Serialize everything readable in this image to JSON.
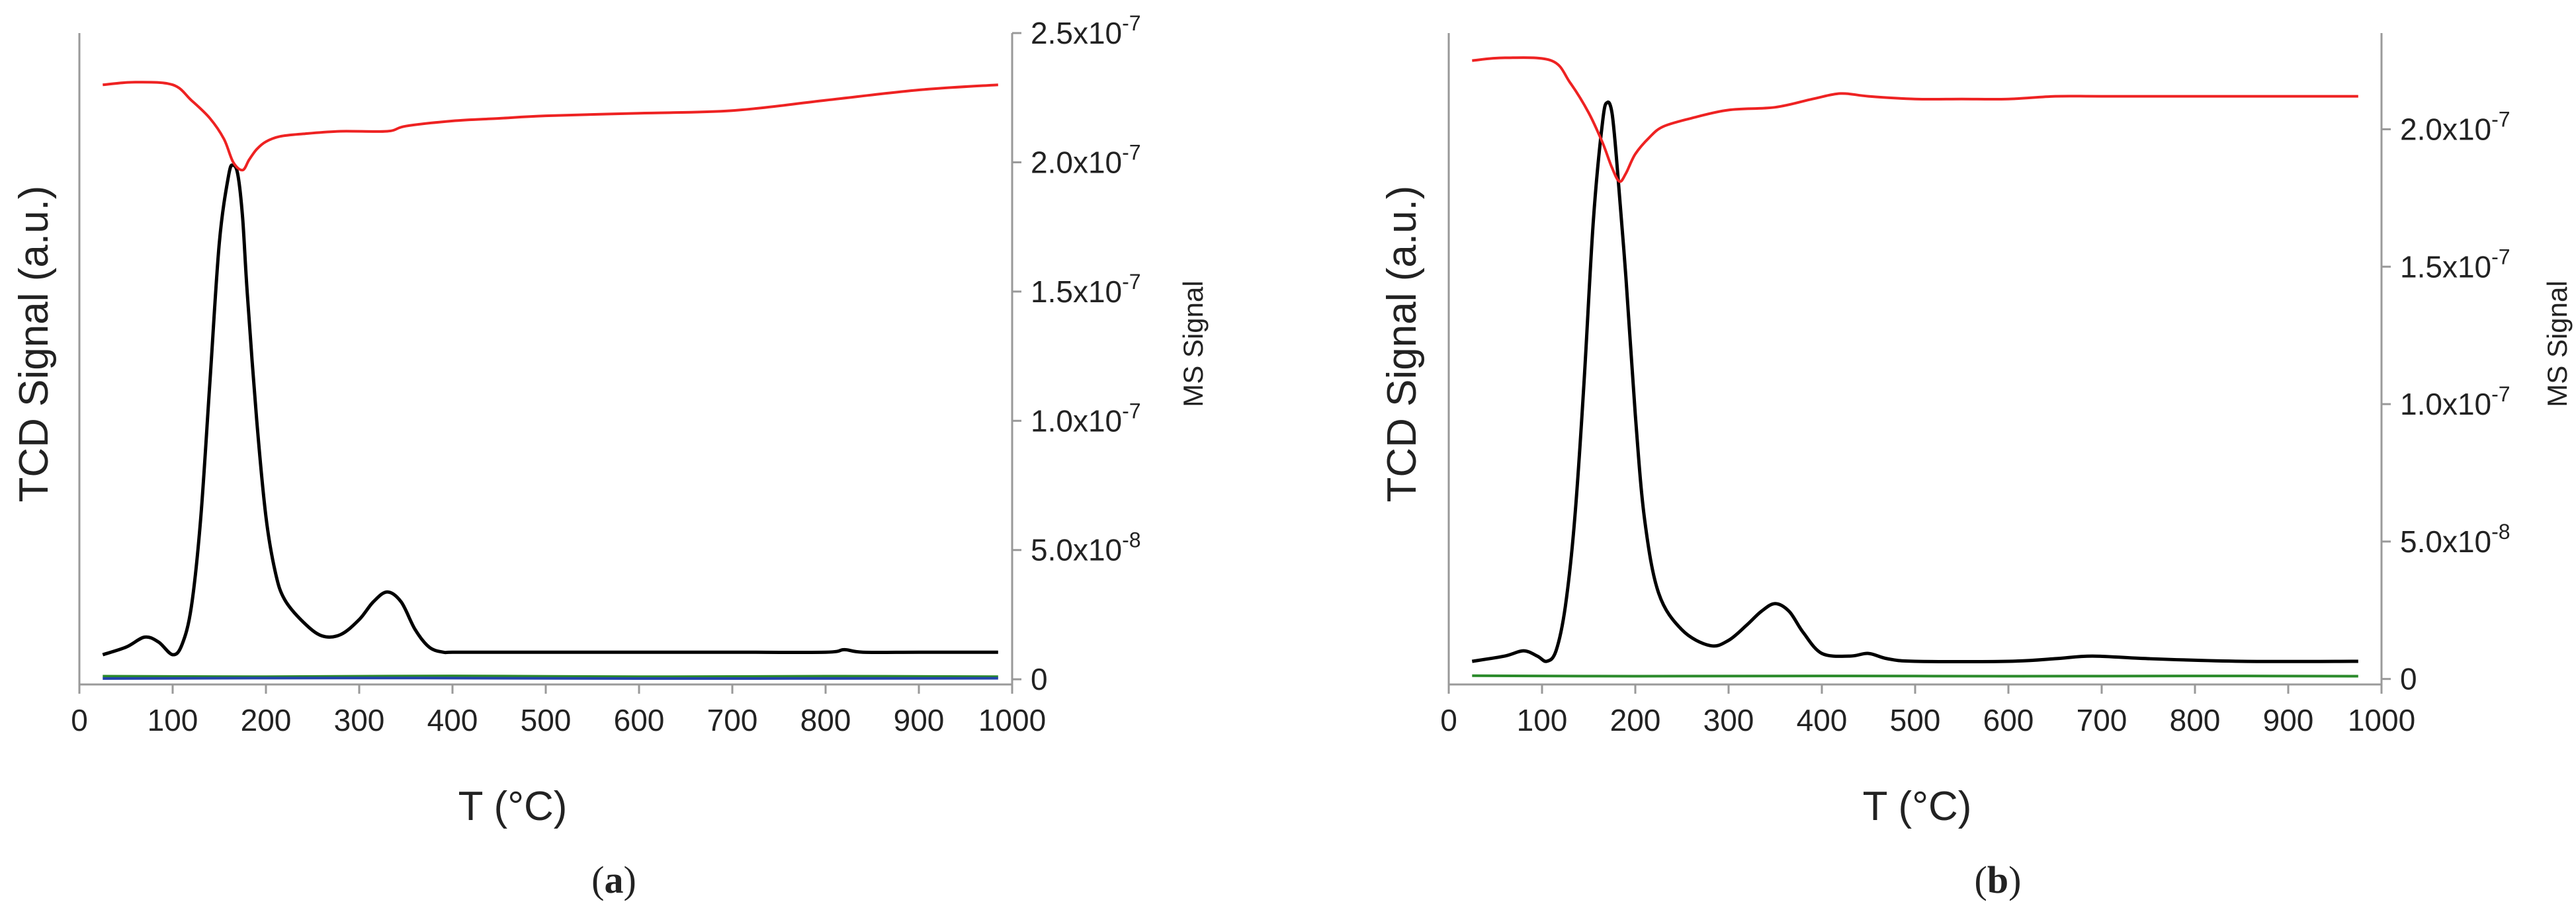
{
  "chart_data": [
    {
      "type": "line",
      "panel_label": "a",
      "xlabel": "T (°C)",
      "ylabel_left": "TCD Signal (a.u.)",
      "ylabel_right": "MS Signal",
      "xlim": [
        0,
        1000
      ],
      "x_ticks": [
        "0",
        "100",
        "200",
        "300",
        "400",
        "500",
        "600",
        "700",
        "800",
        "900",
        "1000"
      ],
      "y_right_ticks": [
        "0",
        "5.0x10-8",
        "1.0x10-7",
        "1.5x10-7",
        "2.0x10-7",
        "2.5x10-7"
      ],
      "y_right_tick_values": [
        0,
        5e-08,
        1e-07,
        1.5e-07,
        2e-07,
        2.5e-07
      ],
      "y_right_lim": [
        -2e-09,
        2.5e-07
      ],
      "series": [
        {
          "name": "TCD signal",
          "axis": "left",
          "color": "#000000",
          "x": [
            25,
            50,
            70,
            85,
            100,
            110,
            120,
            130,
            140,
            150,
            160,
            165,
            170,
            175,
            180,
            190,
            200,
            210,
            220,
            240,
            260,
            280,
            300,
            315,
            330,
            345,
            360,
            375,
            390,
            400,
            450,
            500,
            600,
            700,
            800,
            820,
            840,
            900,
            985
          ],
          "values": [
            2.1e-08,
            2.4e-08,
            2.8e-08,
            2.6e-08,
            2.1e-08,
            2.5e-08,
            4e-08,
            7.5e-08,
            1.3e-07,
            1.85e-07,
            2.12e-07,
            2.16e-07,
            2.12e-07,
            1.95e-07,
            1.65e-07,
            1.15e-07,
            7.6e-08,
            5.4e-08,
            4.3e-08,
            3.4e-08,
            2.85e-08,
            2.9e-08,
            3.5e-08,
            4.2e-08,
            4.6e-08,
            4.2e-08,
            3.1e-08,
            2.4e-08,
            2.2e-08,
            2.2e-08,
            2.2e-08,
            2.2e-08,
            2.2e-08,
            2.2e-08,
            2.2e-08,
            2.3e-08,
            2.2e-08,
            2.2e-08,
            2.2e-08
          ]
        },
        {
          "name": "MS signal",
          "axis": "right",
          "color": "#ee2222",
          "x": [
            25,
            60,
            100,
            120,
            140,
            155,
            165,
            175,
            182,
            190,
            200,
            215,
            240,
            280,
            330,
            350,
            400,
            450,
            500,
            600,
            700,
            800,
            900,
            985
          ],
          "values": [
            2.3e-07,
            2.31e-07,
            2.3e-07,
            2.24e-07,
            2.17e-07,
            2.09e-07,
            2e-07,
            1.97e-07,
            2.01e-07,
            2.05e-07,
            2.08e-07,
            2.1e-07,
            2.11e-07,
            2.12e-07,
            2.12e-07,
            2.14e-07,
            2.16e-07,
            2.17e-07,
            2.18e-07,
            2.19e-07,
            2.2e-07,
            2.24e-07,
            2.28e-07,
            2.3e-07
          ]
        },
        {
          "name": "baseline (green)",
          "axis": "right",
          "color": "#2a8a2a",
          "x": [
            25,
            200,
            400,
            600,
            800,
            985
          ],
          "values": [
            1.2e-09,
            1e-09,
            1.3e-09,
            1e-09,
            1.2e-09,
            1e-09
          ]
        },
        {
          "name": "baseline (blue)",
          "axis": "right",
          "color": "#2244aa",
          "x": [
            25,
            300,
            600,
            985
          ],
          "values": [
            3e-10,
            5e-10,
            3e-10,
            4e-10
          ]
        }
      ]
    },
    {
      "type": "line",
      "panel_label": "b",
      "xlabel": "T (°C)",
      "ylabel_left": "TCD Signal (a.u.)",
      "ylabel_right": "MS Signal",
      "xlim": [
        0,
        1000
      ],
      "x_ticks": [
        "0",
        "100",
        "200",
        "300",
        "400",
        "500",
        "600",
        "700",
        "800",
        "900",
        "1000"
      ],
      "y_right_ticks": [
        "0",
        "5.0x10-8",
        "1.0x10-7",
        "1.5x10-7",
        "2.0x10-7"
      ],
      "y_right_tick_values": [
        0,
        5e-08,
        1e-07,
        1.5e-07,
        2e-07
      ],
      "y_right_lim": [
        -2e-09,
        2.35e-07
      ],
      "series": [
        {
          "name": "TCD signal",
          "axis": "left",
          "color": "#000000",
          "x": [
            25,
            60,
            80,
            95,
            105,
            115,
            125,
            135,
            145,
            155,
            165,
            170,
            175,
            180,
            190,
            200,
            210,
            225,
            250,
            280,
            300,
            320,
            335,
            350,
            365,
            380,
            400,
            430,
            450,
            470,
            500,
            600,
            650,
            690,
            750,
            850,
            975
          ],
          "values": [
            1.4e-08,
            1.6e-08,
            1.8e-08,
            1.6e-08,
            1.4e-08,
            1.8e-08,
            3.5e-08,
            6.8e-08,
            1.2e-07,
            1.82e-07,
            2.2e-07,
            2.27e-07,
            2.23e-07,
            2.05e-07,
            1.6e-07,
            1.08e-07,
            6.8e-08,
            4e-08,
            2.6e-08,
            2e-08,
            2.2e-08,
            2.8e-08,
            3.3e-08,
            3.6e-08,
            3.3e-08,
            2.5e-08,
            1.7e-08,
            1.6e-08,
            1.7e-08,
            1.5e-08,
            1.4e-08,
            1.4e-08,
            1.5e-08,
            1.6e-08,
            1.5e-08,
            1.4e-08,
            1.4e-08
          ]
        },
        {
          "name": "MS signal",
          "axis": "right",
          "color": "#ee2222",
          "x": [
            25,
            60,
            110,
            130,
            150,
            165,
            175,
            183,
            190,
            200,
            215,
            230,
            260,
            300,
            350,
            390,
            420,
            450,
            500,
            550,
            600,
            650,
            700,
            800,
            900,
            975
          ],
          "values": [
            2.25e-07,
            2.26e-07,
            2.25e-07,
            2.17e-07,
            2.06e-07,
            1.95e-07,
            1.86e-07,
            1.81e-07,
            1.84e-07,
            1.91e-07,
            1.97e-07,
            2.01e-07,
            2.04e-07,
            2.07e-07,
            2.08e-07,
            2.11e-07,
            2.13e-07,
            2.12e-07,
            2.11e-07,
            2.11e-07,
            2.11e-07,
            2.12e-07,
            2.12e-07,
            2.12e-07,
            2.12e-07,
            2.12e-07
          ]
        },
        {
          "name": "baseline (green)",
          "axis": "right",
          "color": "#2a8a2a",
          "x": [
            25,
            200,
            400,
            600,
            800,
            975
          ],
          "values": [
            1.2e-09,
            1e-09,
            1.1e-09,
            1e-09,
            1.1e-09,
            1e-09
          ]
        }
      ]
    }
  ]
}
